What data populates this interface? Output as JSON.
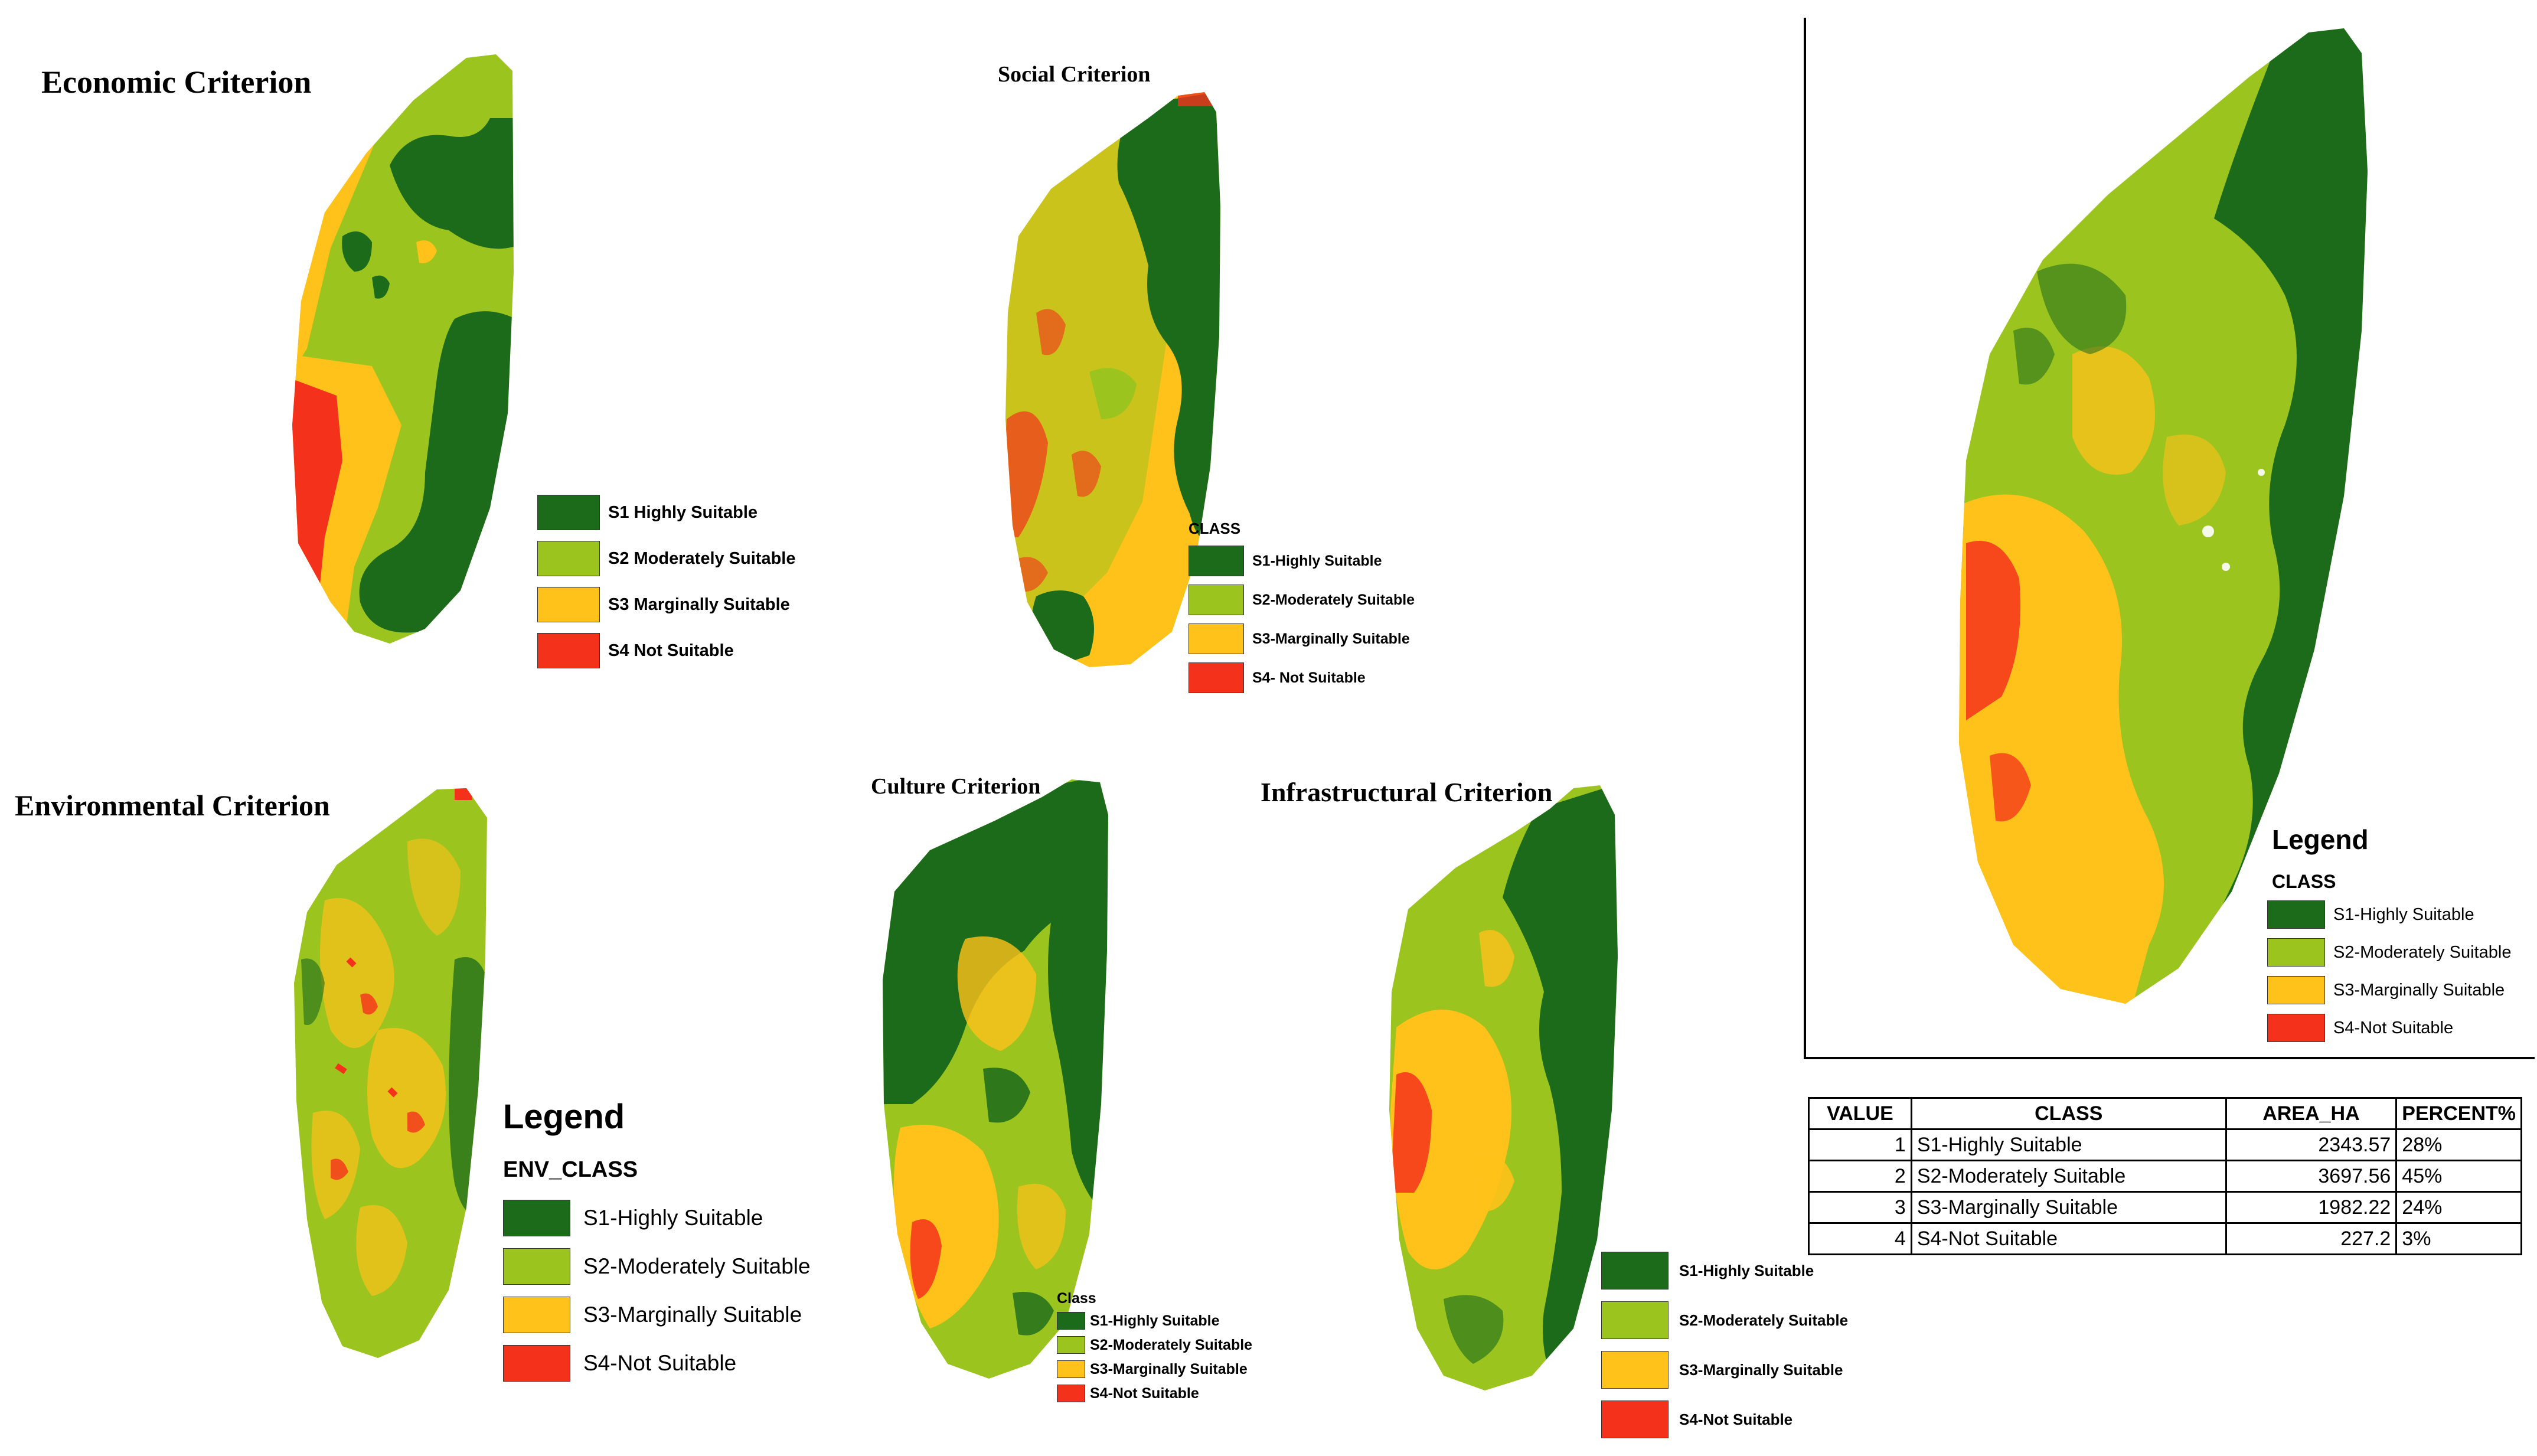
{
  "colors": {
    "s1": "#1b6b1b",
    "s2": "#9cc41e",
    "s3": "#ffc21a",
    "s4": "#f4321c"
  },
  "panels": {
    "economic": {
      "title": "Economic Criterion",
      "legend": [
        "S1 Highly Suitable",
        "S2 Moderately Suitable",
        "S3 Marginally Suitable",
        "S4 Not Suitable"
      ]
    },
    "social": {
      "title": "Social Criterion",
      "legend_header": "CLASS",
      "legend": [
        "S1-Highly Suitable",
        "S2-Moderately Suitable",
        "S3-Marginally Suitable",
        "S4- Not Suitable"
      ]
    },
    "environmental": {
      "title": "Environmental Criterion",
      "legend_title": "Legend",
      "legend_header": "ENV_CLASS",
      "legend": [
        "S1-Highly Suitable",
        "S2-Moderately Suitable",
        "S3-Marginally Suitable",
        "S4-Not Suitable"
      ]
    },
    "culture": {
      "title": "Culture Criterion",
      "legend_header": "Class",
      "legend": [
        "S1-Highly Suitable",
        "S2-Moderately Suitable",
        "S3-Marginally Suitable",
        "S4-Not Suitable"
      ]
    },
    "infrastructural": {
      "title": "Infrastructural Criterion",
      "legend": [
        "S1-Highly Suitable",
        "S2-Moderately Suitable",
        "S3-Marginally Suitable",
        "S4-Not Suitable"
      ]
    },
    "overall": {
      "legend_title": "Legend",
      "legend_header": "CLASS",
      "legend": [
        "S1-Highly Suitable",
        "S2-Moderately Suitable",
        "S3-Marginally Suitable",
        "S4-Not Suitable"
      ]
    }
  },
  "table": {
    "headers": [
      "VALUE",
      "CLASS",
      "AREA_HA",
      "PERCENT%"
    ],
    "rows": [
      [
        "1",
        "S1-Highly Suitable",
        "2343.57",
        "28%"
      ],
      [
        "2",
        "S2-Moderately Suitable",
        "3697.56",
        "45%"
      ],
      [
        "3",
        "S3-Marginally Suitable",
        "1982.22",
        "24%"
      ],
      [
        "4",
        "S4-Not Suitable",
        "227.2",
        "3%"
      ]
    ]
  }
}
